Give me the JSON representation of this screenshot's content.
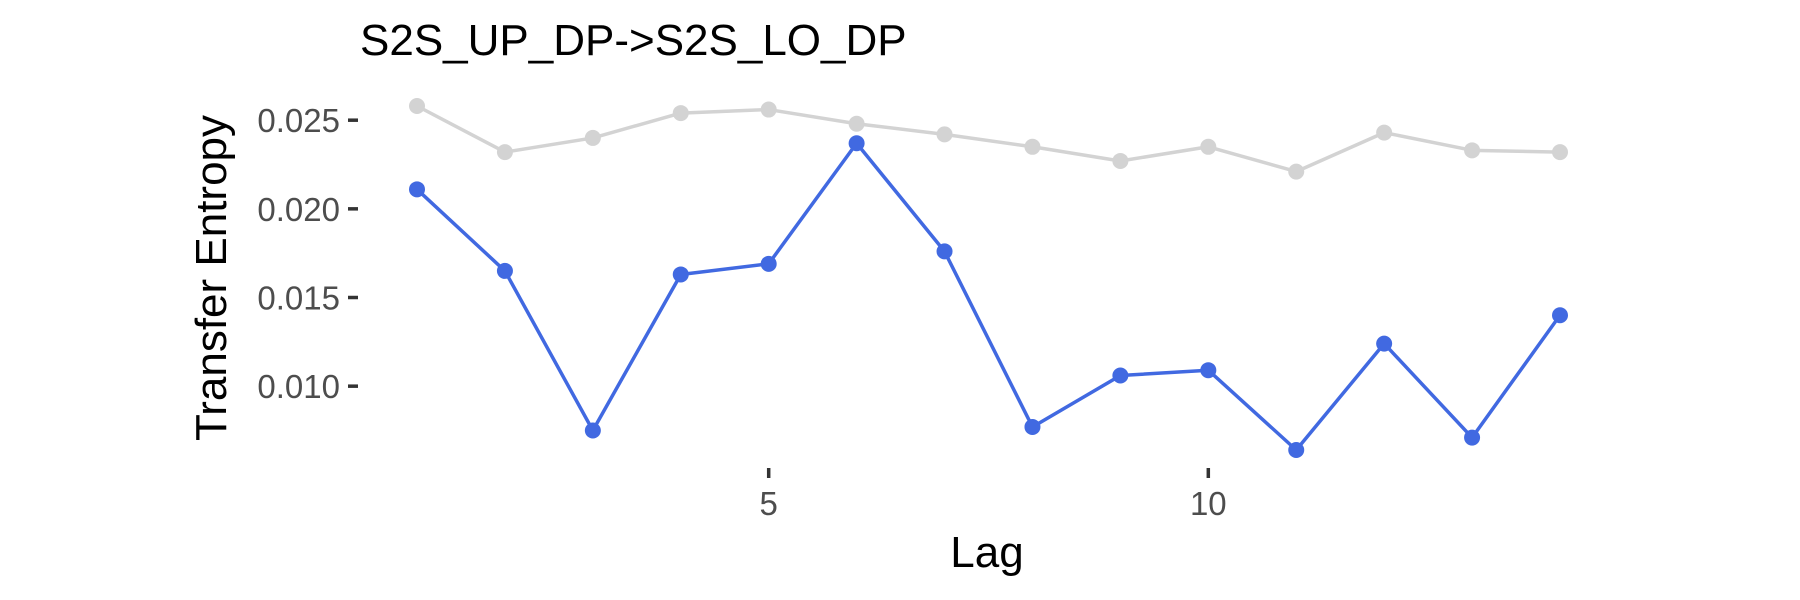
{
  "chart_data": {
    "type": "line",
    "title": "S2S_UP_DP->S2S_LO_DP",
    "xlabel": "Lag",
    "ylabel": "Transfer Entropy",
    "x": [
      1,
      2,
      3,
      4,
      5,
      6,
      7,
      8,
      9,
      10,
      11,
      12,
      13,
      14
    ],
    "xlim": [
      1,
      14
    ],
    "ylim": [
      0.0064,
      0.0258
    ],
    "x_ticks": [
      5,
      10
    ],
    "x_tick_labels": [
      "5",
      "10"
    ],
    "y_ticks": [
      0.01,
      0.015,
      0.02,
      0.025
    ],
    "y_tick_labels": [
      "0.010",
      "0.015",
      "0.020",
      "0.025"
    ],
    "grid": false,
    "legend": "none",
    "series": [
      {
        "color": "#d3d3d3",
        "values": [
          0.0258,
          0.0232,
          0.024,
          0.0254,
          0.0256,
          0.0248,
          0.0242,
          0.0235,
          0.0227,
          0.0235,
          0.0221,
          0.0243,
          0.0233,
          0.0232
        ]
      },
      {
        "color": "#4169e1",
        "values": [
          0.0211,
          0.0165,
          0.0075,
          0.0163,
          0.0169,
          0.0237,
          0.0176,
          0.0077,
          0.0106,
          0.0109,
          0.0064,
          0.0124,
          0.0071,
          0.014
        ]
      }
    ]
  }
}
